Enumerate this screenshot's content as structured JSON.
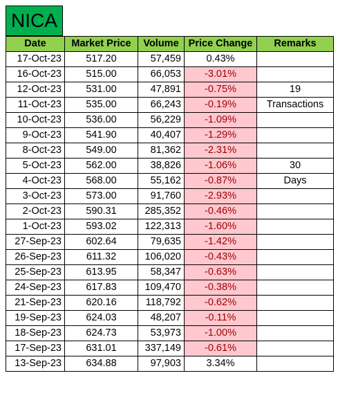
{
  "sheet": {
    "title": "NICA",
    "headers": {
      "date": "Date",
      "price": "Market Price",
      "volume": "Volume",
      "change": "Price Change",
      "remarks": "Remarks"
    },
    "rows": [
      {
        "date": "17-Oct-23",
        "price": "517.20",
        "volume": "57,459",
        "change": "0.43%",
        "negative": false,
        "remarks": ""
      },
      {
        "date": "16-Oct-23",
        "price": "515.00",
        "volume": "66,053",
        "change": "-3.01%",
        "negative": true,
        "remarks": ""
      },
      {
        "date": "12-Oct-23",
        "price": "531.00",
        "volume": "47,891",
        "change": "-0.75%",
        "negative": true,
        "remarks": "19"
      },
      {
        "date": "11-Oct-23",
        "price": "535.00",
        "volume": "66,243",
        "change": "-0.19%",
        "negative": true,
        "remarks": "Transactions"
      },
      {
        "date": "10-Oct-23",
        "price": "536.00",
        "volume": "56,229",
        "change": "-1.09%",
        "negative": true,
        "remarks": ""
      },
      {
        "date": "9-Oct-23",
        "price": "541.90",
        "volume": "40,407",
        "change": "-1.29%",
        "negative": true,
        "remarks": ""
      },
      {
        "date": "8-Oct-23",
        "price": "549.00",
        "volume": "81,362",
        "change": "-2.31%",
        "negative": true,
        "remarks": ""
      },
      {
        "date": "5-Oct-23",
        "price": "562.00",
        "volume": "38,826",
        "change": "-1.06%",
        "negative": true,
        "remarks": "30"
      },
      {
        "date": "4-Oct-23",
        "price": "568.00",
        "volume": "55,162",
        "change": "-0.87%",
        "negative": true,
        "remarks": "Days"
      },
      {
        "date": "3-Oct-23",
        "price": "573.00",
        "volume": "91,760",
        "change": "-2.93%",
        "negative": true,
        "remarks": ""
      },
      {
        "date": "2-Oct-23",
        "price": "590.31",
        "volume": "285,352",
        "change": "-0.46%",
        "negative": true,
        "remarks": ""
      },
      {
        "date": "1-Oct-23",
        "price": "593.02",
        "volume": "122,313",
        "change": "-1.60%",
        "negative": true,
        "remarks": ""
      },
      {
        "date": "27-Sep-23",
        "price": "602.64",
        "volume": "79,635",
        "change": "-1.42%",
        "negative": true,
        "remarks": ""
      },
      {
        "date": "26-Sep-23",
        "price": "611.32",
        "volume": "106,020",
        "change": "-0.43%",
        "negative": true,
        "remarks": ""
      },
      {
        "date": "25-Sep-23",
        "price": "613.95",
        "volume": "58,347",
        "change": "-0.63%",
        "negative": true,
        "remarks": ""
      },
      {
        "date": "24-Sep-23",
        "price": "617.83",
        "volume": "109,470",
        "change": "-0.38%",
        "negative": true,
        "remarks": ""
      },
      {
        "date": "21-Sep-23",
        "price": "620.16",
        "volume": "118,792",
        "change": "-0.62%",
        "negative": true,
        "remarks": ""
      },
      {
        "date": "19-Sep-23",
        "price": "624.03",
        "volume": "48,207",
        "change": "-0.11%",
        "negative": true,
        "remarks": ""
      },
      {
        "date": "18-Sep-23",
        "price": "624.73",
        "volume": "53,973",
        "change": "-1.00%",
        "negative": true,
        "remarks": ""
      },
      {
        "date": "17-Sep-23",
        "price": "631.01",
        "volume": "337,149",
        "change": "-0.61%",
        "negative": true,
        "remarks": ""
      },
      {
        "date": "13-Sep-23",
        "price": "634.88",
        "volume": "97,903",
        "change": "3.34%",
        "negative": false,
        "remarks": ""
      }
    ]
  },
  "colors": {
    "title_fill": "#00b050",
    "header_fill": "#92d050",
    "negative_fill": "#ffc7ce",
    "negative_text": "#9c0006"
  }
}
